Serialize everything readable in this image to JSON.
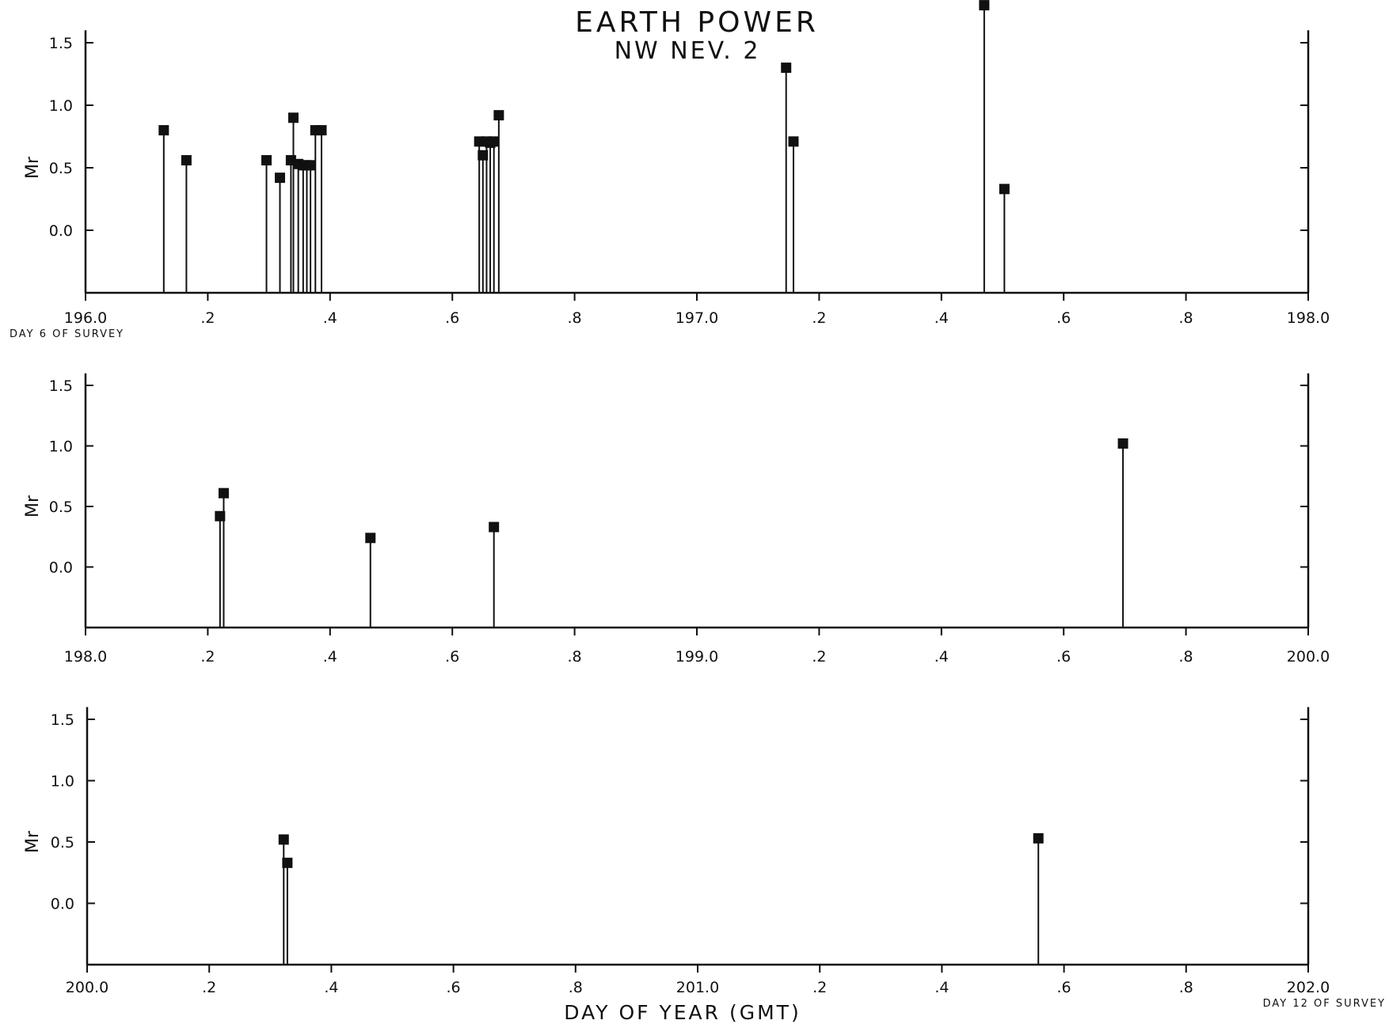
{
  "chart_data": {
    "title": "EARTH POWER",
    "subtitle": "NW NEV. 2",
    "xlabel": "DAY OF YEAR (GMT)",
    "panels": [
      {
        "type": "stem",
        "ylabel": "Mr",
        "xlim": [
          196.0,
          198.0
        ],
        "ylim": [
          -0.5,
          1.6
        ],
        "x_tick_labels": [
          "196.0",
          ".2",
          ".4",
          ".6",
          ".8",
          "197.0",
          ".2",
          ".4",
          ".6",
          ".8",
          "198.0"
        ],
        "y_tick_labels": [
          "1.5",
          "1.0",
          "0.5",
          "0.0"
        ],
        "note": "DAY 6 OF SURVEY",
        "points": [
          {
            "x": 196.128,
            "y": 0.8
          },
          {
            "x": 196.165,
            "y": 0.56
          },
          {
            "x": 196.296,
            "y": 0.56
          },
          {
            "x": 196.318,
            "y": 0.42
          },
          {
            "x": 196.336,
            "y": 0.56
          },
          {
            "x": 196.34,
            "y": 0.9
          },
          {
            "x": 196.348,
            "y": 0.53
          },
          {
            "x": 196.356,
            "y": 0.52
          },
          {
            "x": 196.362,
            "y": 0.52
          },
          {
            "x": 196.368,
            "y": 0.52
          },
          {
            "x": 196.376,
            "y": 0.8
          },
          {
            "x": 196.386,
            "y": 0.8
          },
          {
            "x": 196.644,
            "y": 0.71
          },
          {
            "x": 196.65,
            "y": 0.6
          },
          {
            "x": 196.656,
            "y": 0.71
          },
          {
            "x": 196.662,
            "y": 0.7
          },
          {
            "x": 196.668,
            "y": 0.71
          },
          {
            "x": 196.676,
            "y": 0.92
          },
          {
            "x": 197.146,
            "y": 1.3
          },
          {
            "x": 197.158,
            "y": 0.71
          },
          {
            "x": 197.47,
            "y": 1.8
          },
          {
            "x": 197.503,
            "y": 0.33
          }
        ]
      },
      {
        "type": "stem",
        "ylabel": "Mr",
        "xlim": [
          198.0,
          200.0
        ],
        "ylim": [
          -0.5,
          1.6
        ],
        "x_tick_labels": [
          "198.0",
          ".2",
          ".4",
          ".6",
          ".8",
          "199.0",
          ".2",
          ".4",
          ".6",
          ".8",
          "200.0"
        ],
        "y_tick_labels": [
          "1.5",
          "1.0",
          "0.5",
          "0.0"
        ],
        "note": "",
        "points": [
          {
            "x": 198.22,
            "y": 0.42
          },
          {
            "x": 198.226,
            "y": 0.61
          },
          {
            "x": 198.466,
            "y": 0.24
          },
          {
            "x": 198.668,
            "y": 0.33
          },
          {
            "x": 199.697,
            "y": 1.02
          }
        ]
      },
      {
        "type": "stem",
        "ylabel": "Mr",
        "xlim": [
          200.0,
          202.0
        ],
        "ylim": [
          -0.5,
          1.6
        ],
        "x_tick_labels": [
          "200.0",
          ".2",
          ".4",
          ".6",
          ".8",
          "201.0",
          ".2",
          ".4",
          ".6",
          ".8",
          "202.0"
        ],
        "y_tick_labels": [
          "1.5",
          "1.0",
          "0.5",
          "0.0"
        ],
        "note": "DAY 12 OF SURVEY",
        "points": [
          {
            "x": 200.322,
            "y": 0.52
          },
          {
            "x": 200.328,
            "y": 0.33
          },
          {
            "x": 201.558,
            "y": 0.53
          }
        ]
      }
    ]
  }
}
